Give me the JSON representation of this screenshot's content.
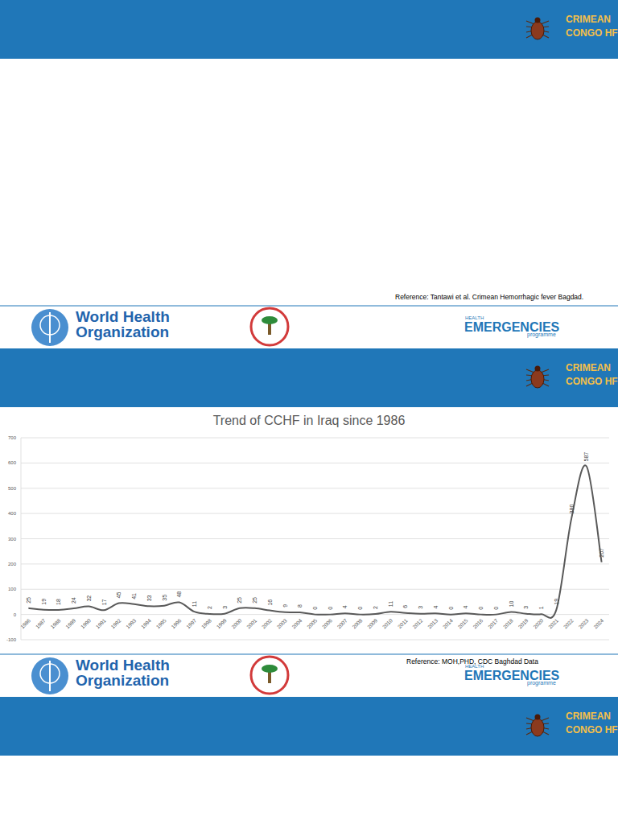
{
  "header": {
    "lines": [
      "CRIMEAN",
      "CONGO HF"
    ]
  },
  "footer": {
    "who": [
      "World Health",
      "Organization"
    ],
    "he_top": "HEALTH",
    "he_main": "EMERGENCIES",
    "he_sub": "programme"
  },
  "slides": [
    {
      "reference": "Reference: Tantawi et al. Crimean Hemorrhagic fever Bagdad."
    },
    {
      "reference": "Reference: MOH,PHD, CDC Baghdad Data"
    }
  ],
  "chart_data": {
    "type": "line",
    "title": "Trend of CCHF in Iraq since 1986",
    "categories": [
      "1986",
      "1987",
      "1988",
      "1989",
      "1990",
      "1991",
      "1992",
      "1993",
      "1994",
      "1995",
      "1996",
      "1997",
      "1998",
      "1999",
      "2000",
      "2001",
      "2002",
      "2003",
      "2004",
      "2005",
      "2006",
      "2007",
      "2008",
      "2009",
      "2010",
      "2011",
      "2012",
      "2013",
      "2014",
      "2015",
      "2016",
      "2017",
      "2018",
      "2019",
      "2020",
      "2021",
      "2022",
      "2023",
      "2024"
    ],
    "values": [
      25,
      19,
      18,
      24,
      32,
      17,
      45,
      41,
      33,
      35,
      48,
      11,
      2,
      3,
      25,
      25,
      16,
      9,
      8,
      0,
      0,
      4,
      0,
      2,
      11,
      6,
      3,
      4,
      0,
      4,
      0,
      0,
      10,
      3,
      1,
      19,
      380,
      587,
      207
    ],
    "color": "#595959",
    "ylim": [
      -100,
      700
    ],
    "yticks": [
      -100,
      0,
      100,
      200,
      300,
      400,
      500,
      600,
      700
    ],
    "grid": true,
    "data_labels": true,
    "line_style": "solid"
  }
}
